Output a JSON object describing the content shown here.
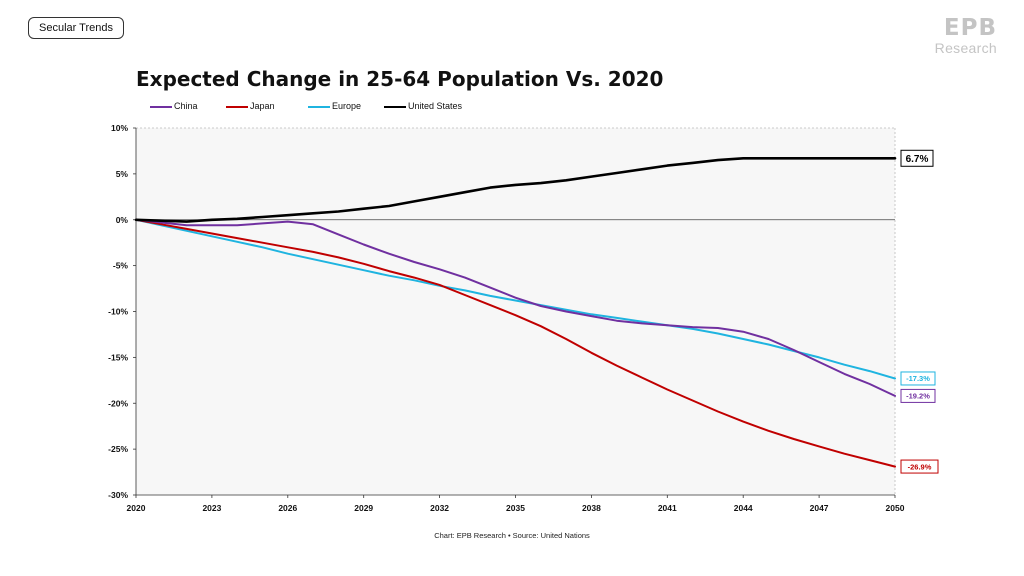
{
  "header": {
    "tag_label": "Secular Trends",
    "logo_mark": "EPB",
    "logo_text": "Research"
  },
  "chart_data": {
    "type": "line",
    "title": "Expected Change in 25-64 Population Vs. 2020",
    "xlabel": "",
    "ylabel": "",
    "x_range": [
      2020,
      2050
    ],
    "ylim": [
      -30,
      10
    ],
    "x_ticks": [
      2020,
      2023,
      2026,
      2029,
      2032,
      2035,
      2038,
      2041,
      2044,
      2047,
      2050
    ],
    "y_ticks": [
      10,
      5,
      0,
      -5,
      -10,
      -15,
      -20,
      -25,
      -30
    ],
    "y_tick_labels": [
      "10%",
      "5%",
      "0%",
      "-5%",
      "-10%",
      "-15%",
      "-20%",
      "-25%",
      "-30%"
    ],
    "grid": false,
    "legend_position": "top-left",
    "x": [
      2020,
      2021,
      2022,
      2023,
      2024,
      2025,
      2026,
      2027,
      2028,
      2029,
      2030,
      2031,
      2032,
      2033,
      2034,
      2035,
      2036,
      2037,
      2038,
      2039,
      2040,
      2041,
      2042,
      2043,
      2044,
      2045,
      2046,
      2047,
      2048,
      2049,
      2050
    ],
    "series": [
      {
        "name": "China",
        "color": "#7030a0",
        "values": [
          0,
          -0.3,
          -0.6,
          -0.6,
          -0.6,
          -0.4,
          -0.2,
          -0.5,
          -1.6,
          -2.7,
          -3.7,
          -4.6,
          -5.4,
          -6.3,
          -7.4,
          -8.5,
          -9.4,
          -10.0,
          -10.5,
          -11.0,
          -11.3,
          -11.5,
          -11.7,
          -11.8,
          -12.2,
          -13.0,
          -14.2,
          -15.5,
          -16.8,
          -17.9,
          -19.2
        ],
        "end_label": "-19.2%"
      },
      {
        "name": "Japan",
        "color": "#c00000",
        "values": [
          0,
          -0.5,
          -1.0,
          -1.5,
          -2.0,
          -2.5,
          -3.0,
          -3.5,
          -4.1,
          -4.8,
          -5.6,
          -6.3,
          -7.1,
          -8.2,
          -9.3,
          -10.4,
          -11.6,
          -13.0,
          -14.5,
          -15.9,
          -17.2,
          -18.5,
          -19.7,
          -20.9,
          -22.0,
          -23.0,
          -23.9,
          -24.7,
          -25.5,
          -26.2,
          -26.9
        ],
        "end_label": "-26.9%"
      },
      {
        "name": "Europe",
        "color": "#1fb4e0",
        "values": [
          0,
          -0.6,
          -1.2,
          -1.8,
          -2.4,
          -3.0,
          -3.7,
          -4.3,
          -4.9,
          -5.5,
          -6.1,
          -6.6,
          -7.2,
          -7.7,
          -8.3,
          -8.8,
          -9.3,
          -9.8,
          -10.3,
          -10.7,
          -11.1,
          -11.5,
          -11.9,
          -12.4,
          -13.0,
          -13.6,
          -14.3,
          -15.0,
          -15.8,
          -16.5,
          -17.3
        ],
        "end_label": "-17.3%"
      },
      {
        "name": "United States",
        "color": "#000000",
        "values": [
          0,
          -0.1,
          -0.2,
          0.0,
          0.1,
          0.3,
          0.5,
          0.7,
          0.9,
          1.2,
          1.5,
          2.0,
          2.5,
          3.0,
          3.5,
          3.8,
          4.0,
          4.3,
          4.7,
          5.1,
          5.5,
          5.9,
          6.2,
          6.5,
          6.7,
          6.7,
          6.7,
          6.7,
          6.7,
          6.7,
          6.7
        ],
        "end_label": "6.7%"
      }
    ]
  },
  "footer": {
    "source": "Chart: EPB Research  •  Source: United Nations"
  }
}
